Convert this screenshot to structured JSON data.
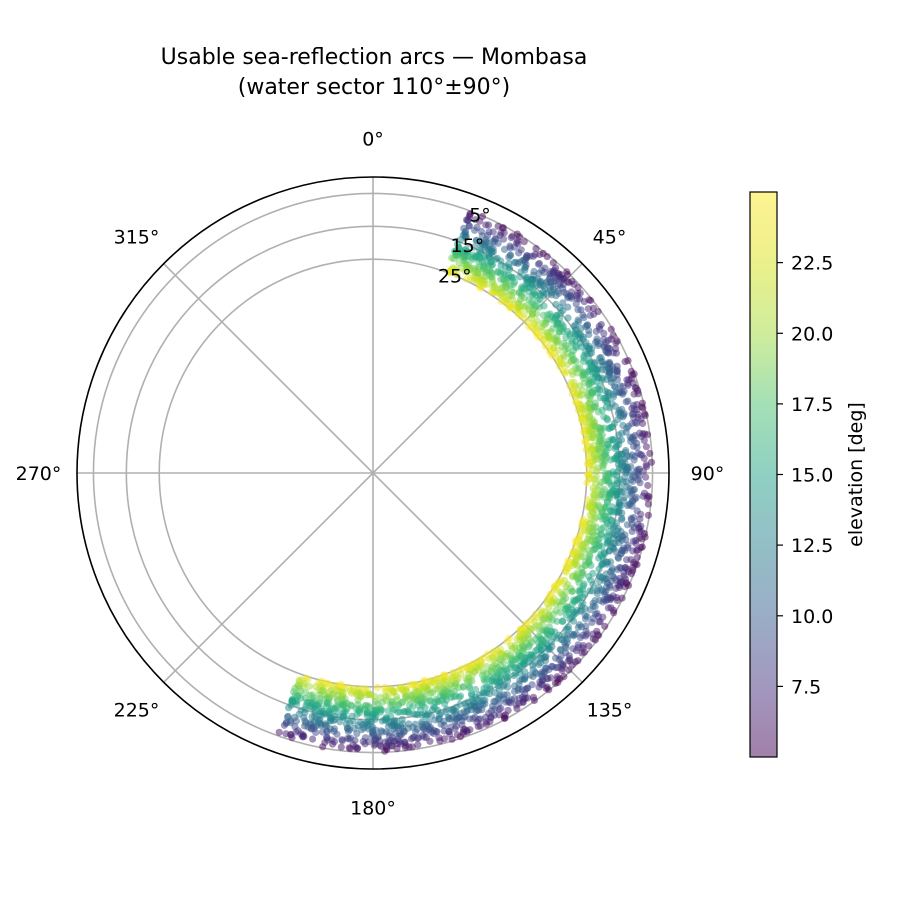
{
  "chart_data": {
    "type": "scatter",
    "projection": "polar",
    "title": "Usable sea-reflection arcs — Mombasa",
    "subtitle": "(water sector 110°±90°)",
    "theta_zero_location": "N",
    "theta_direction": "clockwise",
    "theta_ticks": [
      "0°",
      "45°",
      "90°",
      "135°",
      "180°",
      "225°",
      "270°",
      "315°"
    ],
    "radial_ticks": [
      "5°",
      "15°",
      "25°"
    ],
    "radial_tick_values": [
      5,
      15,
      25
    ],
    "radial_axis": "90 - elevation",
    "radial_ticks_position_deg": 22.5,
    "grid": true,
    "water_sector": {
      "center_deg": 110,
      "half_width_deg": 90
    },
    "azimuth_range_deg": [
      20,
      200
    ],
    "elevation_range_deg": [
      5,
      25
    ],
    "color_by": "elevation",
    "colormap": "viridis",
    "colorbar": {
      "label": "elevation [deg]",
      "ticks": [
        "7.5",
        "10.0",
        "12.5",
        "15.0",
        "17.5",
        "20.0",
        "22.5"
      ],
      "tick_values": [
        7.5,
        10.0,
        12.5,
        15.0,
        17.5,
        20.0,
        22.5
      ],
      "range": [
        5,
        25
      ],
      "alpha": 0.5
    }
  }
}
